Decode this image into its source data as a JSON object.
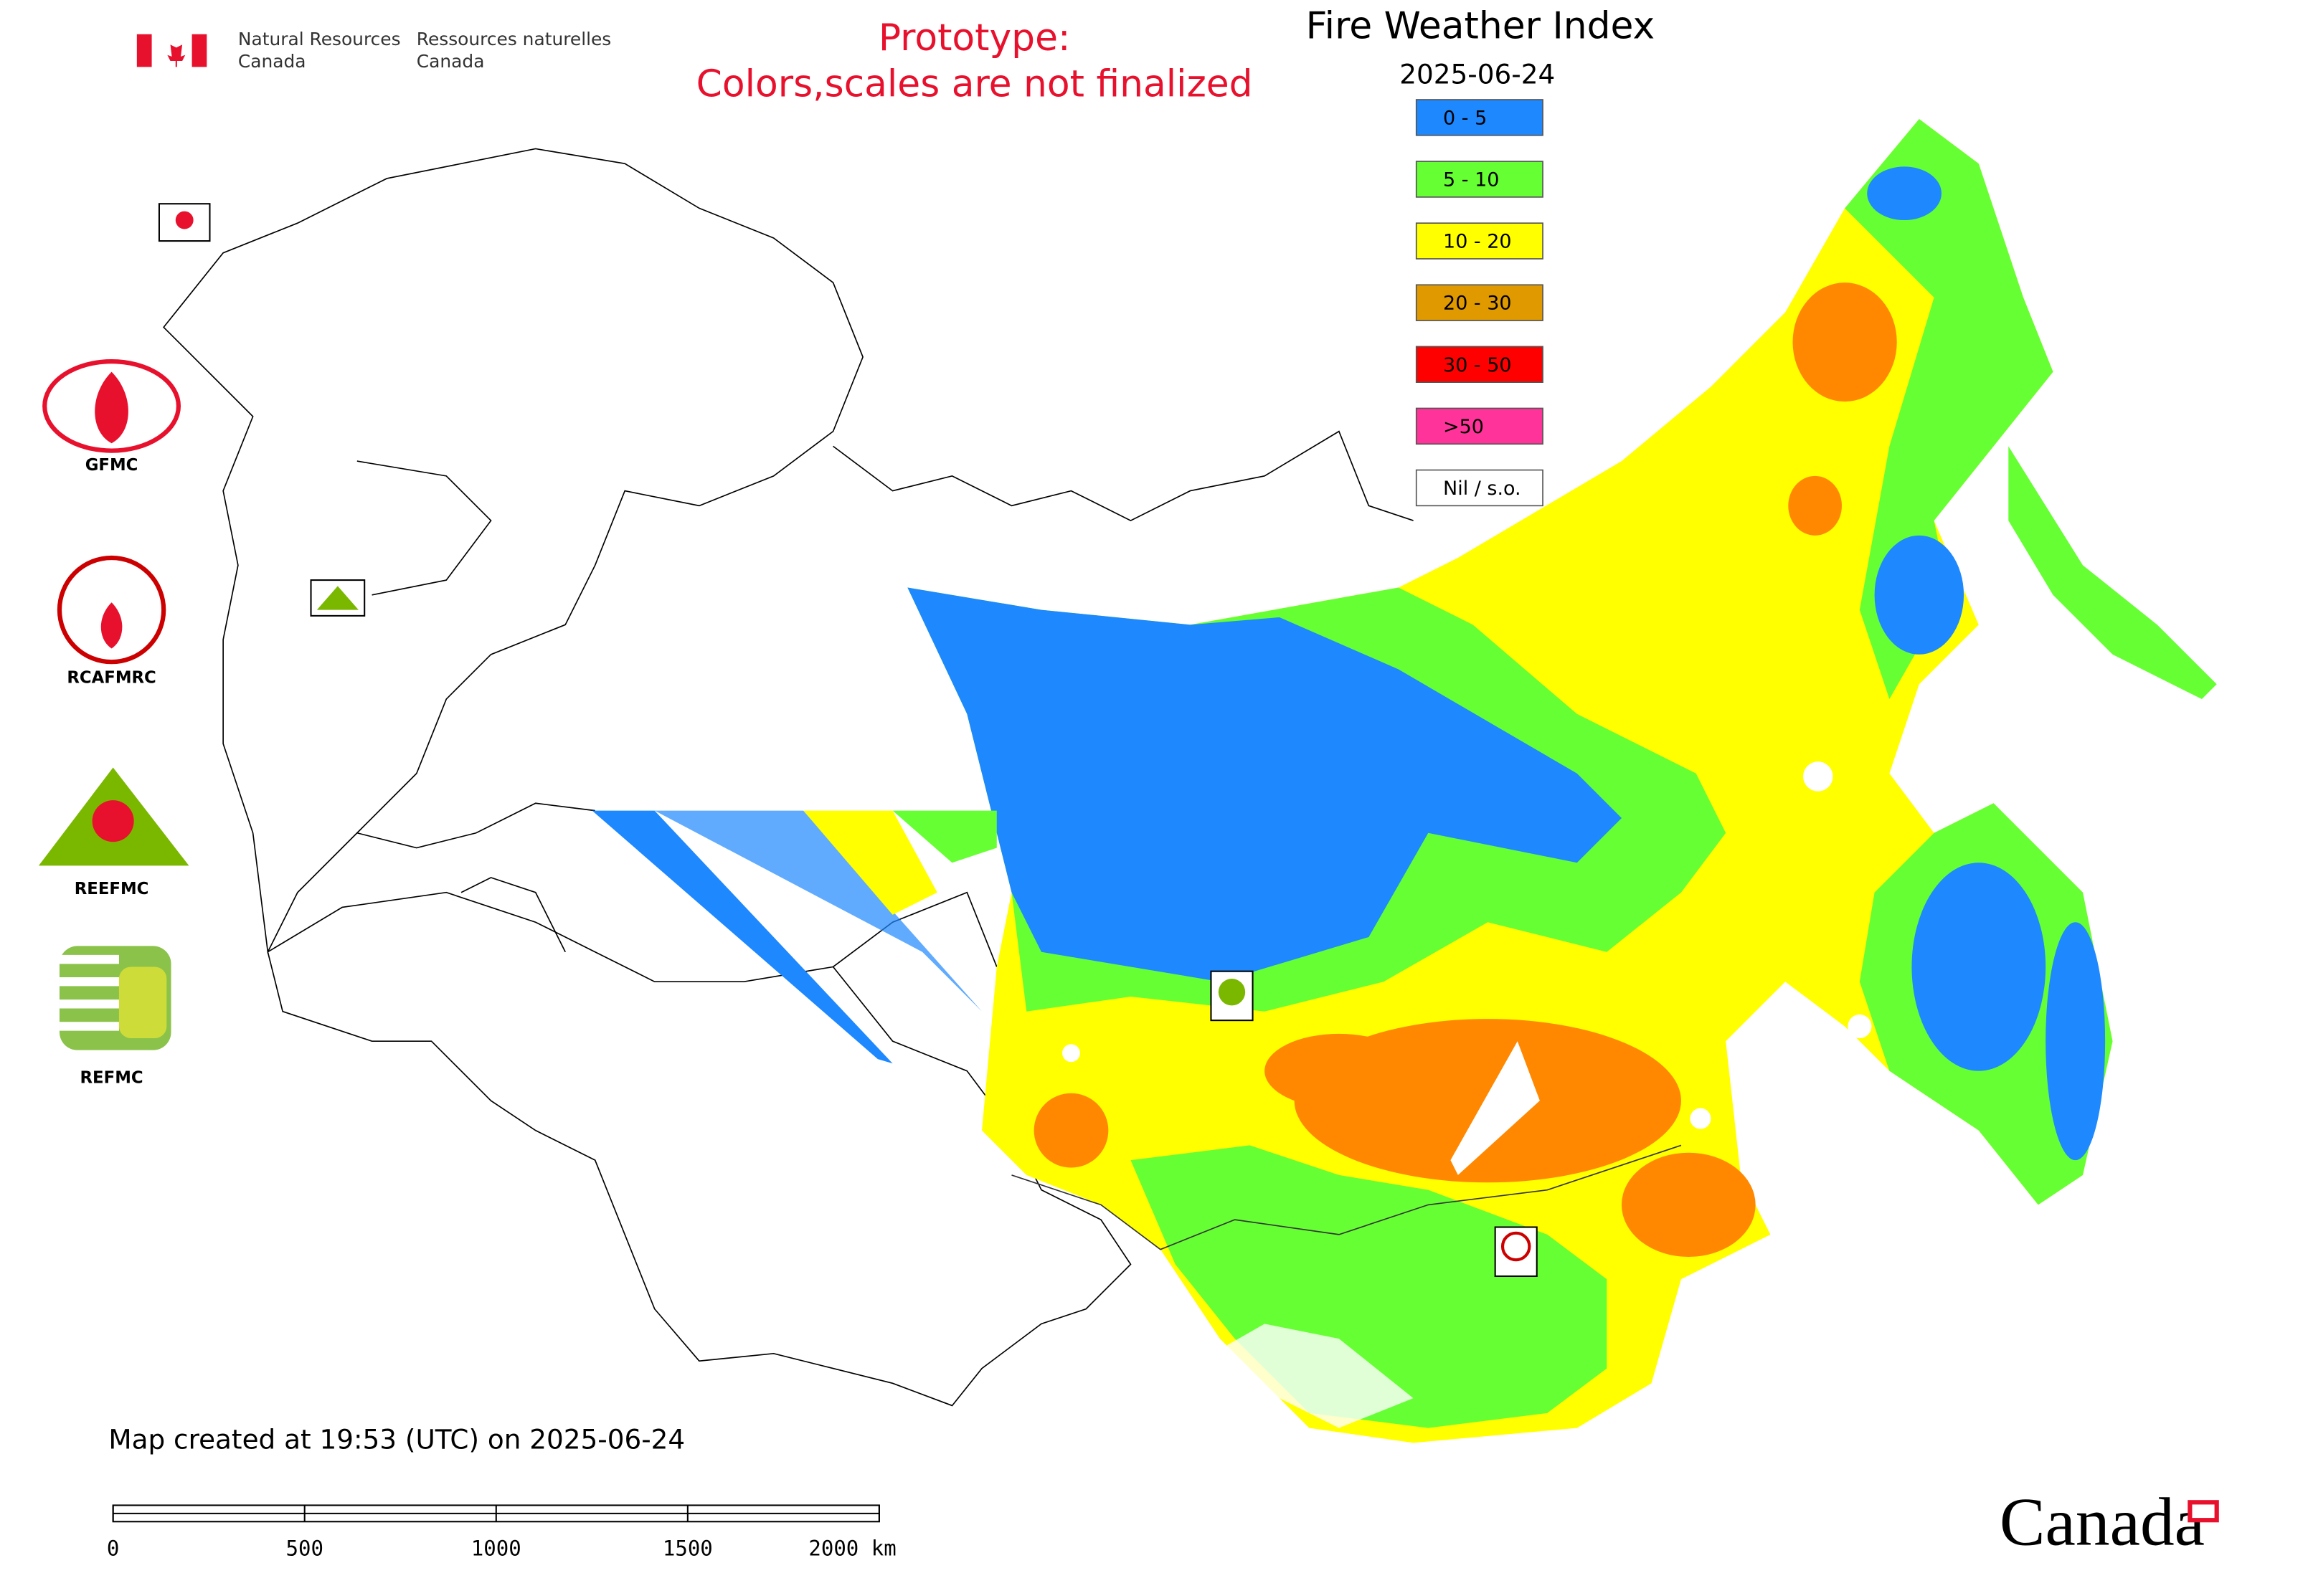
{
  "header": {
    "org_en_1": "Natural Resources",
    "org_en_2": "Canada",
    "org_fr_1": "Ressources naturelles",
    "org_fr_2": "Canada",
    "prototype_1": "Prototype:",
    "prototype_2": "Colors,scales are not finalized"
  },
  "map": {
    "title": "Fire Weather Index",
    "date": "2025-06-24",
    "legend": [
      {
        "label": "0 - 5",
        "color": "#1e88ff"
      },
      {
        "label": "5 - 10",
        "color": "#66ff33"
      },
      {
        "label": "10 - 20",
        "color": "#ffff00"
      },
      {
        "label": "20 - 30",
        "color": "#e09a00"
      },
      {
        "label": "30 - 50",
        "color": "#ff0000"
      },
      {
        "label": ">50",
        "color": "#ff3399"
      },
      {
        "label": "Nil / s.o.",
        "color": "#ffffff"
      }
    ],
    "partners": [
      "GFMC",
      "RCAFMRC",
      "REEFMC",
      "REFMC"
    ]
  },
  "footer": {
    "created": "Map created at 19:53 (UTC) on 2025-06-24",
    "scale_labels": [
      "0",
      "500",
      "1000",
      "1500",
      "2000 km"
    ],
    "wordmark": "Canada"
  }
}
